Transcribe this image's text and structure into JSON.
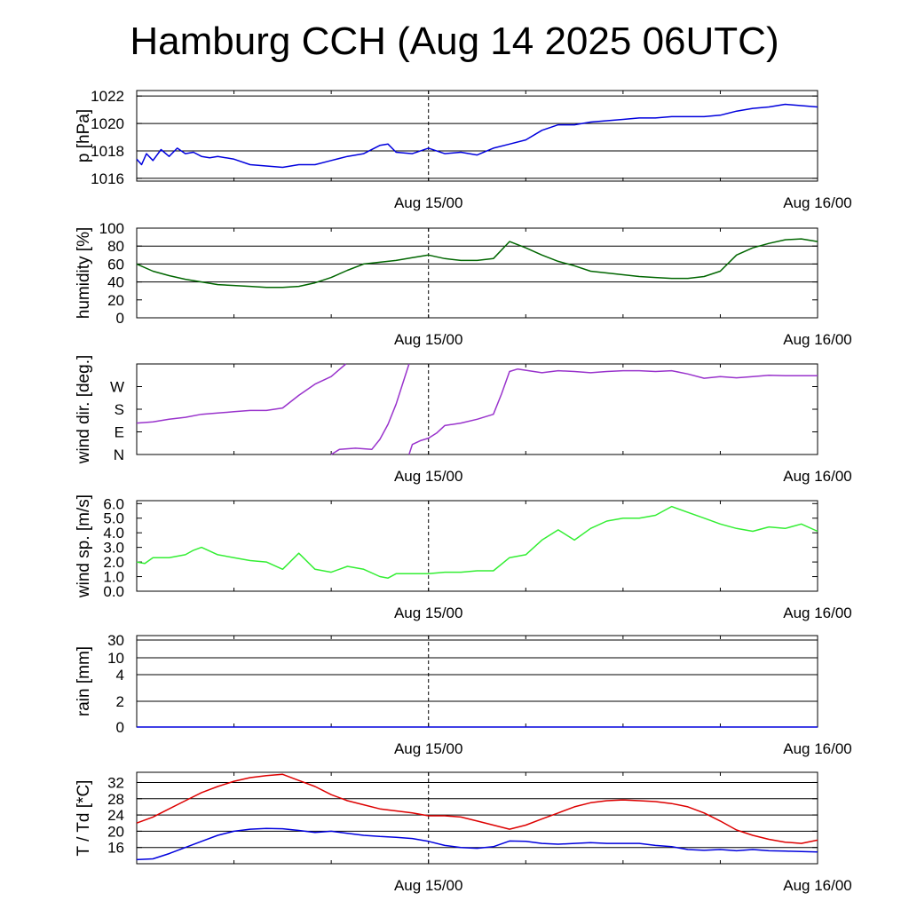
{
  "title": "Hamburg CCH (Aug 14 2025 06UTC)",
  "chart_data": [
    {
      "type": "line",
      "ylabel": "p [hPa]",
      "x_axis": {
        "start": "Aug 14 06UTC",
        "end": "Aug 16 00UTC",
        "unit": "hours since Aug 14 06UTC",
        "range": [
          0,
          42
        ]
      },
      "x_tick_labels": [
        {
          "x": 18,
          "label": "Aug 15/00"
        },
        {
          "x": 42,
          "label": "Aug 16/00"
        }
      ],
      "day_marker": 18,
      "ylim": [
        1015.8,
        1022.4
      ],
      "yticks": [
        1016,
        1018,
        1020,
        1022
      ],
      "ytick_labels": [
        "1016",
        "1018",
        "1020",
        "1022"
      ],
      "gridlines": [
        1016,
        1018,
        1020,
        1022
      ],
      "series": [
        {
          "color": "#0000dd",
          "x": [
            0,
            0.3,
            0.6,
            1,
            1.5,
            2,
            2.5,
            3,
            3.5,
            4,
            4.5,
            5,
            6,
            7,
            8,
            9,
            10,
            11,
            12,
            13,
            14,
            15,
            15.5,
            16,
            17,
            18,
            19,
            20,
            21,
            22,
            23,
            24,
            25,
            26,
            27,
            28,
            29,
            30,
            31,
            32,
            33,
            34,
            35,
            36,
            37,
            38,
            39,
            40,
            41,
            42
          ],
          "y": [
            1017.4,
            1017.0,
            1017.8,
            1017.3,
            1018.1,
            1017.6,
            1018.2,
            1017.8,
            1017.9,
            1017.6,
            1017.5,
            1017.6,
            1017.4,
            1017.0,
            1016.9,
            1016.8,
            1017.0,
            1017.0,
            1017.3,
            1017.6,
            1017.8,
            1018.4,
            1018.5,
            1017.9,
            1017.8,
            1018.2,
            1017.8,
            1017.9,
            1017.7,
            1018.2,
            1018.5,
            1018.8,
            1019.5,
            1019.9,
            1019.9,
            1020.1,
            1020.2,
            1020.3,
            1020.4,
            1020.4,
            1020.5,
            1020.5,
            1020.5,
            1020.6,
            1020.9,
            1021.1,
            1021.2,
            1021.4,
            1021.3,
            1021.2
          ]
        }
      ]
    },
    {
      "type": "line",
      "ylabel": "humidity [%]",
      "x_axis": {
        "start": "Aug 14 06UTC",
        "end": "Aug 16 00UTC",
        "unit": "hours since Aug 14 06UTC",
        "range": [
          0,
          42
        ]
      },
      "x_tick_labels": [
        {
          "x": 18,
          "label": "Aug 15/00"
        },
        {
          "x": 42,
          "label": "Aug 16/00"
        }
      ],
      "day_marker": 18,
      "ylim": [
        0,
        100
      ],
      "yticks": [
        0,
        20,
        40,
        60,
        80,
        100
      ],
      "ytick_labels": [
        "0",
        "20",
        "40",
        "60",
        "80",
        "100"
      ],
      "gridlines": [
        40,
        60,
        80
      ],
      "series": [
        {
          "color": "#006600",
          "x": [
            0,
            1,
            2,
            3,
            4,
            5,
            6,
            7,
            8,
            9,
            10,
            11,
            12,
            13,
            14,
            15,
            16,
            17,
            18,
            19,
            20,
            21,
            22,
            23,
            24,
            25,
            26,
            27,
            28,
            29,
            30,
            31,
            32,
            33,
            34,
            35,
            36,
            37,
            38,
            39,
            40,
            41,
            42
          ],
          "y": [
            60,
            52,
            47,
            43,
            40,
            37,
            36,
            35,
            34,
            34,
            35,
            39,
            45,
            53,
            60,
            62,
            64,
            67,
            70,
            66,
            64,
            64,
            66,
            85,
            78,
            70,
            63,
            58,
            52,
            50,
            48,
            46,
            45,
            44,
            44,
            46,
            52,
            70,
            78,
            83,
            87,
            88,
            85
          ]
        }
      ]
    },
    {
      "type": "line",
      "ylabel": "wind dir. [deg.]",
      "x_axis": {
        "start": "Aug 14 06UTC",
        "end": "Aug 16 00UTC",
        "unit": "hours since Aug 14 06UTC",
        "range": [
          0,
          42
        ]
      },
      "x_tick_labels": [
        {
          "x": 18,
          "label": "Aug 15/00"
        },
        {
          "x": 42,
          "label": "Aug 16/00"
        }
      ],
      "day_marker": 18,
      "ylim": [
        0,
        360
      ],
      "yticks": [
        0,
        90,
        180,
        270
      ],
      "ytick_labels": [
        "N",
        "E",
        "S",
        "W"
      ],
      "gridlines": [],
      "series": [
        {
          "color": "#9933cc",
          "segments": [
            {
              "x": [
                0,
                1,
                2,
                3,
                4,
                5,
                6,
                7,
                8,
                9,
                10,
                11,
                12,
                12.9
              ],
              "y": [
                125,
                130,
                140,
                148,
                160,
                165,
                170,
                175,
                175,
                185,
                235,
                280,
                310,
                360
              ]
            },
            {
              "x": [
                12,
                12.5,
                13.5,
                14.5,
                15,
                15.5,
                16,
                16.5,
                16.8
              ],
              "y": [
                0,
                20,
                25,
                20,
                60,
                120,
                200,
                300,
                360
              ]
            },
            {
              "x": [
                16.8,
                17,
                17.5,
                18,
                18.5,
                19,
                20,
                21,
                22,
                22.5,
                23,
                23.5,
                24,
                25,
                26,
                27,
                28,
                29,
                30,
                31,
                32,
                33,
                34,
                35,
                36,
                37,
                38,
                39,
                40,
                41,
                42
              ],
              "y": [
                0,
                40,
                55,
                65,
                85,
                115,
                125,
                140,
                160,
                240,
                330,
                340,
                335,
                325,
                333,
                330,
                325,
                330,
                333,
                333,
                330,
                333,
                320,
                303,
                310,
                305,
                310,
                315,
                313,
                313,
                313
              ]
            }
          ]
        }
      ]
    },
    {
      "type": "line",
      "ylabel": "wind sp. [m/s]",
      "x_axis": {
        "start": "Aug 14 06UTC",
        "end": "Aug 16 00UTC",
        "unit": "hours since Aug 14 06UTC",
        "range": [
          0,
          42
        ]
      },
      "x_tick_labels": [
        {
          "x": 18,
          "label": "Aug 15/00"
        },
        {
          "x": 42,
          "label": "Aug 16/00"
        }
      ],
      "day_marker": 18,
      "ylim": [
        0,
        6.2
      ],
      "yticks": [
        0,
        1,
        2,
        3,
        4,
        5,
        6
      ],
      "ytick_labels": [
        "0.0",
        "1.0",
        "2.0",
        "3.0",
        "4.0",
        "5.0",
        "6.0"
      ],
      "gridlines": [],
      "series": [
        {
          "color": "#33ee33",
          "x": [
            0,
            0.5,
            1,
            2,
            3,
            3.5,
            4,
            5,
            6,
            7,
            8,
            9,
            10,
            11,
            12,
            13,
            14,
            15,
            15.5,
            16,
            17,
            18,
            19,
            20,
            21,
            22,
            23,
            24,
            25,
            26,
            27,
            28,
            29,
            30,
            31,
            32,
            33,
            34,
            35,
            36,
            37,
            38,
            39,
            40,
            41,
            42
          ],
          "y": [
            2.0,
            1.9,
            2.3,
            2.3,
            2.5,
            2.8,
            3.0,
            2.5,
            2.3,
            2.1,
            2.0,
            1.5,
            2.6,
            1.5,
            1.3,
            1.7,
            1.5,
            1.0,
            0.9,
            1.2,
            1.2,
            1.2,
            1.3,
            1.3,
            1.4,
            1.4,
            2.3,
            2.5,
            3.5,
            4.2,
            3.5,
            4.3,
            4.8,
            5.0,
            5.0,
            5.2,
            5.8,
            5.4,
            5.0,
            4.6,
            4.3,
            4.1,
            4.4,
            4.3,
            4.6,
            4.1
          ]
        }
      ]
    },
    {
      "type": "line",
      "ylabel": "rain [mm]",
      "x_axis": {
        "start": "Aug 14 06UTC",
        "end": "Aug 16 00UTC",
        "unit": "hours since Aug 14 06UTC",
        "range": [
          0,
          42
        ]
      },
      "x_tick_labels": [
        {
          "x": 18,
          "label": "Aug 15/00"
        },
        {
          "x": 42,
          "label": "Aug 16/00"
        }
      ],
      "day_marker": 18,
      "scale": "non-linear",
      "ytick_labels": [
        "0",
        "2",
        "4",
        "10",
        "30"
      ],
      "gridlines": [
        "2",
        "4",
        "10",
        "30"
      ],
      "series": [
        {
          "color": "#0000dd",
          "x": [
            0,
            42
          ],
          "y": [
            0,
            0
          ]
        }
      ]
    },
    {
      "type": "line",
      "ylabel": "T / Td [*C]",
      "x_axis": {
        "start": "Aug 14 06UTC",
        "end": "Aug 16 00UTC",
        "unit": "hours since Aug 14 06UTC",
        "range": [
          0,
          42
        ]
      },
      "x_tick_labels": [
        {
          "x": 18,
          "label": "Aug 15/00"
        },
        {
          "x": 42,
          "label": "Aug 16/00"
        }
      ],
      "day_marker": 18,
      "ylim": [
        12,
        34.5
      ],
      "yticks": [
        16,
        20,
        24,
        28,
        32
      ],
      "ytick_labels": [
        "16",
        "20",
        "24",
        "28",
        "32"
      ],
      "gridlines": [
        16,
        20,
        24,
        28,
        32
      ],
      "series": [
        {
          "color": "#dd0000",
          "x": [
            0,
            1,
            2,
            3,
            4,
            5,
            6,
            7,
            8,
            9,
            10,
            11,
            12,
            13,
            14,
            15,
            16,
            17,
            18,
            19,
            20,
            21,
            22,
            23,
            24,
            25,
            26,
            27,
            28,
            29,
            30,
            31,
            32,
            33,
            34,
            35,
            36,
            37,
            38,
            39,
            40,
            41,
            42
          ],
          "y": [
            22,
            23.5,
            25.5,
            27.5,
            29.5,
            31,
            32.3,
            33.2,
            33.7,
            34,
            32.5,
            31,
            29,
            27.5,
            26.5,
            25.5,
            25,
            24.5,
            23.8,
            23.8,
            23.5,
            22.5,
            21.5,
            20.5,
            21.5,
            23,
            24.5,
            26,
            27,
            27.5,
            27.7,
            27.5,
            27.3,
            26.8,
            26,
            24.5,
            22.5,
            20.3,
            19,
            18,
            17.3,
            17,
            17.8
          ]
        },
        {
          "color": "#0000dd",
          "x": [
            0,
            1,
            2,
            3,
            4,
            5,
            6,
            7,
            8,
            9,
            10,
            11,
            12,
            13,
            14,
            15,
            16,
            17,
            18,
            19,
            20,
            21,
            22,
            23,
            24,
            25,
            26,
            27,
            28,
            29,
            30,
            31,
            32,
            33,
            34,
            35,
            36,
            37,
            38,
            39,
            40,
            41,
            42
          ],
          "y": [
            13,
            13.2,
            14.5,
            16,
            17.5,
            19,
            20,
            20.5,
            20.7,
            20.6,
            20.2,
            19.7,
            20,
            19.5,
            19,
            18.7,
            18.5,
            18.2,
            17.5,
            16.5,
            16,
            15.8,
            16.2,
            17.6,
            17.5,
            17,
            16.8,
            17,
            17.2,
            17,
            17,
            17,
            16.5,
            16.2,
            15.5,
            15.3,
            15.5,
            15.2,
            15.5,
            15.2,
            15.1,
            15,
            14.9
          ]
        }
      ]
    }
  ]
}
